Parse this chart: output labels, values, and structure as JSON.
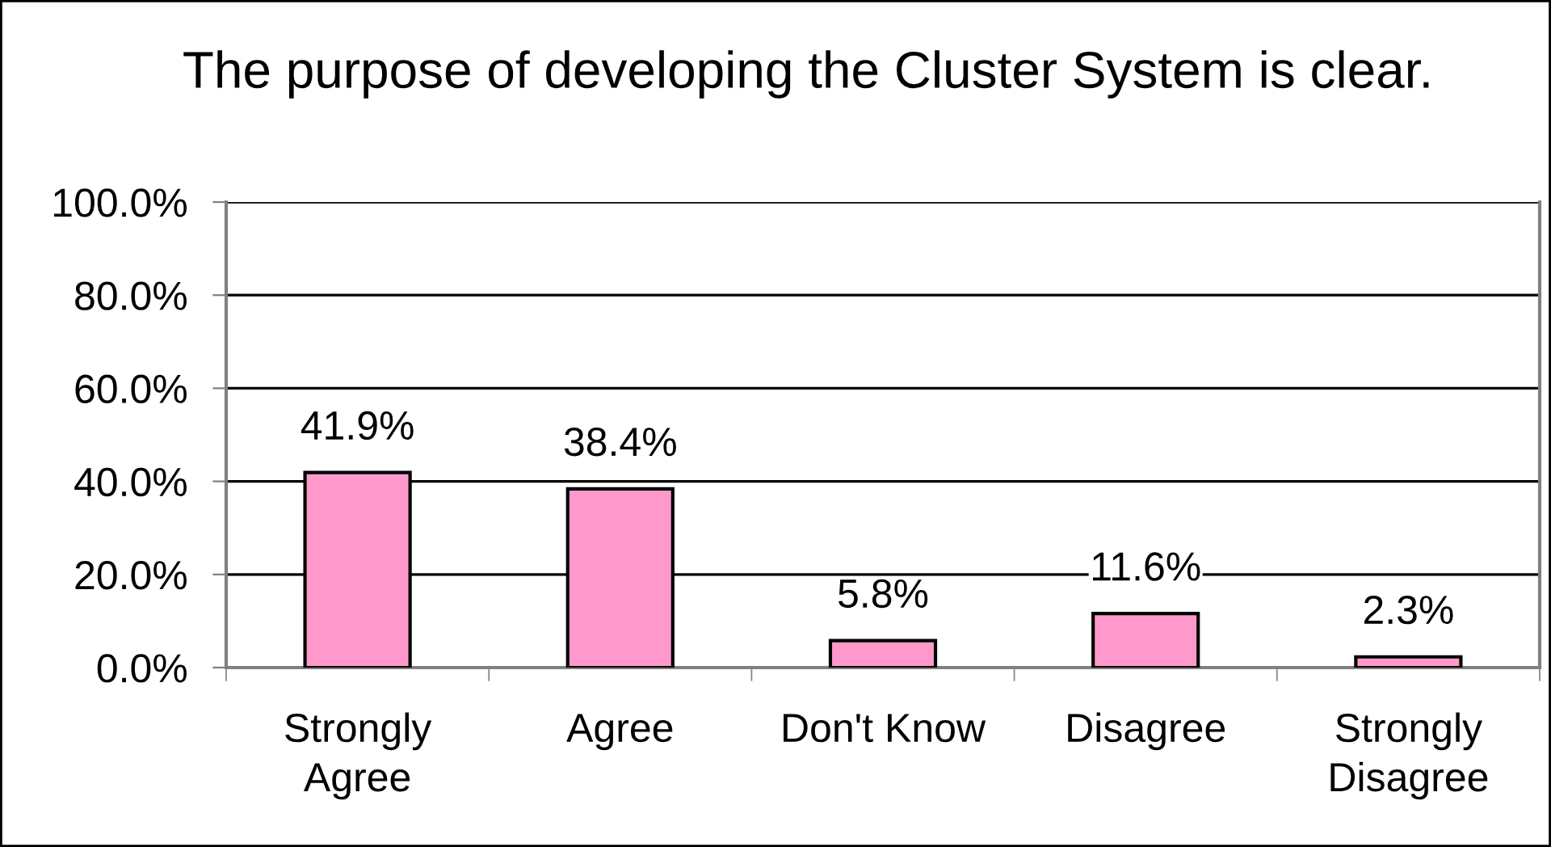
{
  "chart_data": {
    "type": "bar",
    "title": "The purpose of developing the Cluster System is clear.",
    "categories": [
      "Strongly\nAgree",
      "Agree",
      "Don't Know",
      "Disagree",
      "Strongly\nDisagree"
    ],
    "values": [
      41.9,
      38.4,
      5.8,
      11.6,
      2.3
    ],
    "color": "#ff99cc",
    "value_labels": [
      "41.9%",
      "38.4%",
      "5.8%",
      "11.6%",
      "2.3%"
    ],
    "ylim": [
      0,
      100
    ],
    "yticks": [
      {
        "value": 0,
        "label": "0.0%"
      },
      {
        "value": 20,
        "label": "20.0%"
      },
      {
        "value": 40,
        "label": "40.0%"
      },
      {
        "value": 60,
        "label": "60.0%"
      },
      {
        "value": 80,
        "label": "80.0%"
      },
      {
        "value": 100,
        "label": "100.0%"
      }
    ],
    "grid": "y"
  }
}
